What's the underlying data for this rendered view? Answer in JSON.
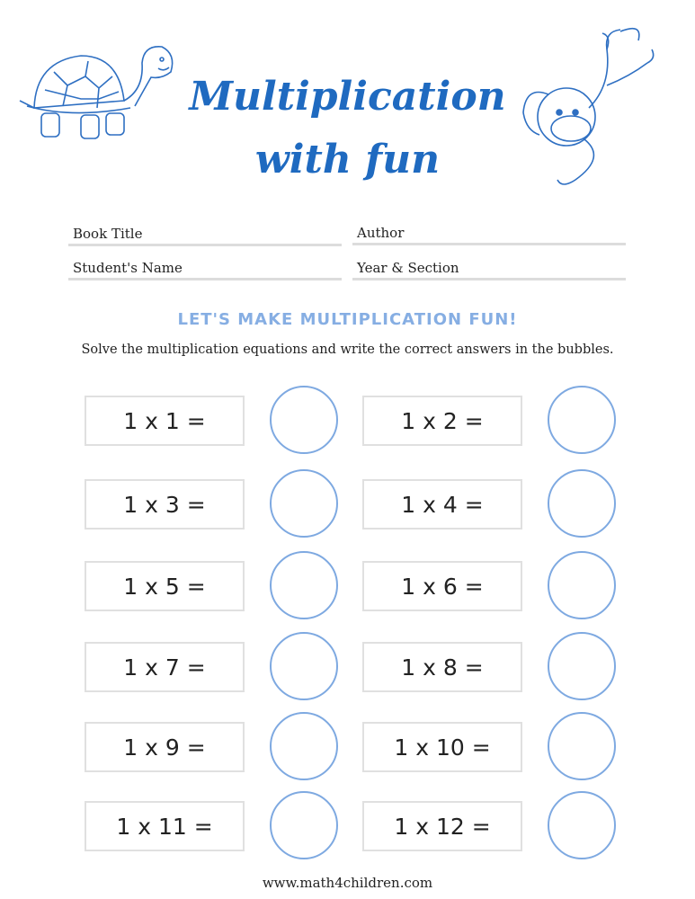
{
  "header": {
    "title_line1": "Multiplication",
    "title_line2": "with fun"
  },
  "fields": [
    {
      "label": "Book Title"
    },
    {
      "label": "Author"
    },
    {
      "label": "Student's Name"
    },
    {
      "label": "Year & Section"
    }
  ],
  "section": {
    "heading": "LET'S MAKE MULTIPLICATION FUN!",
    "instructions": "Solve the multiplication equations and write the correct answers in the bubbles."
  },
  "equations": [
    "1 x 1 =",
    "1 x 2 =",
    "1 x 3 =",
    "1 x 4 =",
    "1 x 5 =",
    "1 x 6 =",
    "1 x 7 =",
    "1 x 8 =",
    "1 x 9 =",
    "1 x 10 =",
    "1 x 11 =",
    "1 x 12 ="
  ],
  "footer": {
    "url": "www.math4children.com"
  },
  "colors": {
    "title": "#1f6ac0",
    "accent": "#86aee3",
    "bubble": "#7ea9e1"
  },
  "illustrations": [
    "turtle-illustration",
    "monkey-illustration"
  ]
}
